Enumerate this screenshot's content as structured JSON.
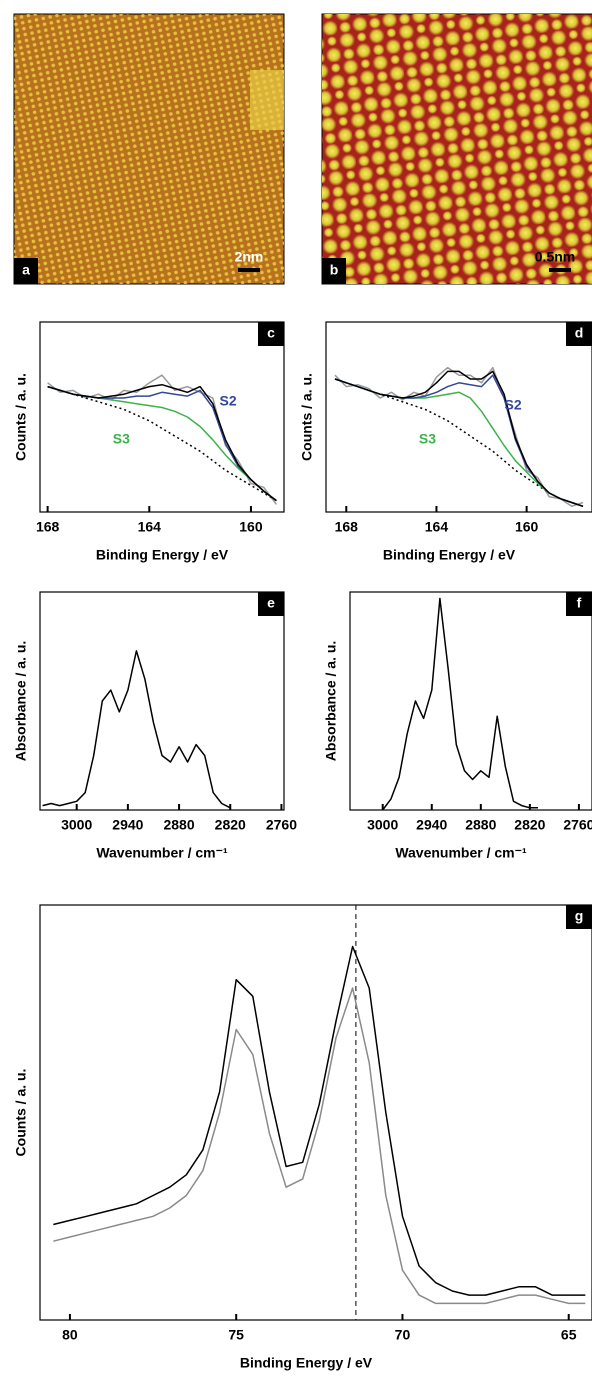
{
  "images": [
    {
      "label": "a",
      "scale_bar": "2nm"
    },
    {
      "label": "b",
      "scale_bar": "0.5nm"
    }
  ],
  "chart_data": [
    {
      "type": "line",
      "panel_label": "c",
      "x_label": "Binding Energy / eV",
      "y_label": "Counts / a. u.",
      "xlim": [
        168.3,
        158.7
      ],
      "ylim": [
        0,
        1
      ],
      "xticks": [
        168,
        164,
        160
      ],
      "x": [
        168,
        167.5,
        167,
        166.5,
        166,
        165.5,
        165,
        164.5,
        164,
        163.5,
        163,
        162.5,
        162,
        161.5,
        161,
        160.5,
        160,
        159.5,
        159
      ],
      "series": [
        {
          "name": "raw",
          "color": "#9a9a9a",
          "style": "solid",
          "values": [
            0.68,
            0.63,
            0.64,
            0.6,
            0.62,
            0.59,
            0.64,
            0.63,
            0.68,
            0.72,
            0.64,
            0.66,
            0.63,
            0.6,
            0.35,
            0.27,
            0.15,
            0.13,
            0.04
          ]
        },
        {
          "name": "background",
          "color": "#000000",
          "style": "dotted",
          "values": [
            0.66,
            0.64,
            0.62,
            0.6,
            0.58,
            0.56,
            0.54,
            0.51,
            0.48,
            0.44,
            0.4,
            0.36,
            0.32,
            0.27,
            0.22,
            0.18,
            0.14,
            0.1,
            0.06
          ]
        },
        {
          "name": "S3",
          "color": "#3cb34a",
          "style": "solid",
          "values": [
            0.66,
            0.64,
            0.62,
            0.61,
            0.6,
            0.59,
            0.58,
            0.57,
            0.56,
            0.55,
            0.53,
            0.5,
            0.45,
            0.38,
            0.3,
            0.23,
            0.17,
            0.11,
            0.06
          ]
        },
        {
          "name": "S2",
          "color": "#35479a",
          "style": "solid",
          "values": [
            0.66,
            0.64,
            0.62,
            0.61,
            0.6,
            0.6,
            0.6,
            0.61,
            0.61,
            0.63,
            0.62,
            0.61,
            0.64,
            0.55,
            0.36,
            0.24,
            0.17,
            0.11,
            0.06
          ]
        },
        {
          "name": "envelope",
          "color": "#000000",
          "style": "solid",
          "values": [
            0.66,
            0.64,
            0.62,
            0.61,
            0.6,
            0.61,
            0.62,
            0.64,
            0.66,
            0.67,
            0.65,
            0.63,
            0.66,
            0.57,
            0.38,
            0.25,
            0.17,
            0.11,
            0.06
          ]
        }
      ],
      "annotations": [
        {
          "text": "S2",
          "x": 160.9,
          "y": 0.58,
          "color": "#35479a"
        },
        {
          "text": "S3",
          "x": 165.1,
          "y": 0.38,
          "color": "#3cb34a"
        }
      ]
    },
    {
      "type": "line",
      "panel_label": "d",
      "x_label": "Binding Energy / eV",
      "y_label": "Counts / a. u.",
      "xlim": [
        168.9,
        157.1
      ],
      "ylim": [
        0,
        1
      ],
      "xticks": [
        168,
        164,
        160
      ],
      "x": [
        168.5,
        168,
        167.5,
        167,
        166.5,
        166,
        165.5,
        165,
        164.5,
        164,
        163.5,
        163,
        162.5,
        162,
        161.5,
        161,
        160.5,
        160,
        159.5,
        159,
        158.5,
        158,
        157.5
      ],
      "series": [
        {
          "name": "raw",
          "color": "#9a9a9a",
          "style": "solid",
          "values": [
            0.72,
            0.66,
            0.67,
            0.65,
            0.6,
            0.63,
            0.59,
            0.63,
            0.61,
            0.71,
            0.76,
            0.72,
            0.72,
            0.68,
            0.76,
            0.6,
            0.41,
            0.22,
            0.18,
            0.08,
            0.07,
            0.03,
            0.05
          ]
        },
        {
          "name": "background",
          "color": "#000000",
          "style": "dotted",
          "values": [
            0.7,
            0.68,
            0.66,
            0.64,
            0.62,
            0.6,
            0.58,
            0.56,
            0.54,
            0.51,
            0.48,
            0.44,
            0.4,
            0.36,
            0.32,
            0.27,
            0.22,
            0.18,
            0.14,
            0.1,
            0.07,
            0.05,
            0.03
          ]
        },
        {
          "name": "S3",
          "color": "#3cb34a",
          "style": "solid",
          "values": [
            0.7,
            0.68,
            0.66,
            0.64,
            0.62,
            0.61,
            0.6,
            0.6,
            0.6,
            0.61,
            0.62,
            0.63,
            0.6,
            0.53,
            0.44,
            0.35,
            0.27,
            0.21,
            0.15,
            0.1,
            0.07,
            0.05,
            0.03
          ]
        },
        {
          "name": "S2",
          "color": "#35479a",
          "style": "solid",
          "values": [
            0.7,
            0.68,
            0.66,
            0.64,
            0.62,
            0.61,
            0.6,
            0.6,
            0.61,
            0.63,
            0.66,
            0.68,
            0.67,
            0.66,
            0.72,
            0.6,
            0.38,
            0.24,
            0.16,
            0.1,
            0.07,
            0.05,
            0.03
          ]
        },
        {
          "name": "envelope",
          "color": "#000000",
          "style": "solid",
          "values": [
            0.7,
            0.68,
            0.66,
            0.64,
            0.62,
            0.61,
            0.6,
            0.61,
            0.63,
            0.68,
            0.74,
            0.74,
            0.7,
            0.7,
            0.74,
            0.62,
            0.39,
            0.25,
            0.16,
            0.1,
            0.07,
            0.05,
            0.03
          ]
        }
      ],
      "annotations": [
        {
          "text": "S2",
          "x": 160.6,
          "y": 0.56,
          "color": "#35479a"
        },
        {
          "text": "S3",
          "x": 164.4,
          "y": 0.38,
          "color": "#3cb34a"
        }
      ]
    },
    {
      "type": "line",
      "panel_label": "e",
      "x_label": "Wavenumber / cm⁻¹",
      "y_label": "Absorbance / a. u.",
      "xlim": [
        3043,
        2757
      ],
      "ylim": [
        0,
        1
      ],
      "xticks": [
        3000,
        2940,
        2880,
        2820,
        2760
      ],
      "x": [
        3040,
        3030,
        3020,
        3010,
        3000,
        2990,
        2980,
        2970,
        2960,
        2950,
        2940,
        2930,
        2920,
        2910,
        2900,
        2890,
        2880,
        2870,
        2860,
        2850,
        2840,
        2830,
        2820
      ],
      "series": [
        {
          "name": "spectrum",
          "color": "#000000",
          "style": "solid",
          "values": [
            0.02,
            0.03,
            0.02,
            0.03,
            0.04,
            0.08,
            0.25,
            0.5,
            0.55,
            0.45,
            0.55,
            0.73,
            0.6,
            0.4,
            0.25,
            0.22,
            0.29,
            0.22,
            0.3,
            0.25,
            0.08,
            0.03,
            0.01
          ]
        }
      ]
    },
    {
      "type": "line",
      "panel_label": "f",
      "x_label": "Wavenumber / cm⁻¹",
      "y_label": "Absorbance / a. u.",
      "xlim": [
        3040,
        2744
      ],
      "ylim": [
        0,
        1
      ],
      "xticks": [
        3000,
        2940,
        2880,
        2820,
        2760
      ],
      "x": [
        3000,
        2990,
        2980,
        2970,
        2960,
        2950,
        2940,
        2930,
        2920,
        2910,
        2900,
        2890,
        2880,
        2870,
        2860,
        2850,
        2840,
        2830,
        2820,
        2810
      ],
      "series": [
        {
          "name": "spectrum",
          "color": "#000000",
          "style": "solid",
          "values": [
            0.0,
            0.05,
            0.15,
            0.35,
            0.5,
            0.42,
            0.55,
            0.97,
            0.65,
            0.3,
            0.18,
            0.14,
            0.18,
            0.15,
            0.43,
            0.2,
            0.04,
            0.02,
            0.01,
            0.01
          ]
        }
      ]
    },
    {
      "type": "line",
      "panel_label": "g",
      "x_label": "Binding Energy / eV",
      "y_label": "Counts / a. u.",
      "xlim": [
        80.9,
        64.3
      ],
      "ylim": [
        0,
        1
      ],
      "xticks": [
        80,
        75,
        70,
        65
      ],
      "reference_line_x": 71.4,
      "x": [
        80.5,
        80,
        79.5,
        79,
        78.5,
        78,
        77.5,
        77,
        76.5,
        76,
        75.5,
        75,
        74.5,
        74,
        73.5,
        73,
        72.5,
        72,
        71.5,
        71,
        70.5,
        70,
        69.5,
        69,
        68.5,
        68,
        67.5,
        67,
        66.5,
        66,
        65.5,
        65,
        64.5
      ],
      "series": [
        {
          "name": "gray",
          "color": "#8a8a8a",
          "style": "solid",
          "values": [
            0.19,
            0.2,
            0.21,
            0.22,
            0.23,
            0.24,
            0.25,
            0.27,
            0.3,
            0.36,
            0.5,
            0.7,
            0.64,
            0.45,
            0.32,
            0.34,
            0.48,
            0.68,
            0.8,
            0.62,
            0.3,
            0.12,
            0.06,
            0.04,
            0.04,
            0.04,
            0.04,
            0.05,
            0.06,
            0.06,
            0.05,
            0.04,
            0.04
          ]
        },
        {
          "name": "black",
          "color": "#000000",
          "style": "solid",
          "values": [
            0.23,
            0.24,
            0.25,
            0.26,
            0.27,
            0.28,
            0.3,
            0.32,
            0.35,
            0.41,
            0.55,
            0.82,
            0.78,
            0.55,
            0.37,
            0.38,
            0.52,
            0.72,
            0.9,
            0.8,
            0.5,
            0.25,
            0.13,
            0.09,
            0.07,
            0.06,
            0.06,
            0.07,
            0.08,
            0.08,
            0.06,
            0.06,
            0.06
          ]
        }
      ]
    }
  ]
}
